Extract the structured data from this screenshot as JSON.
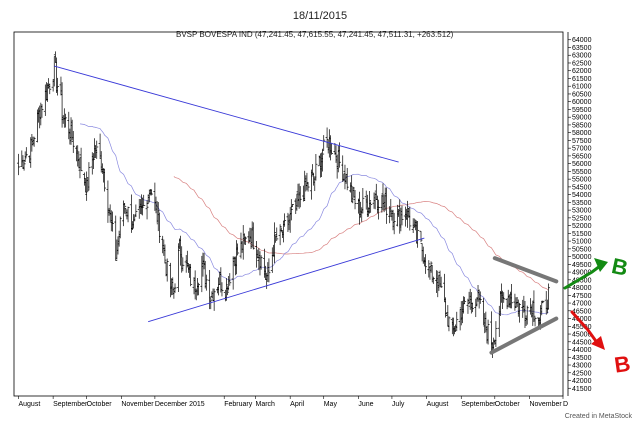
{
  "header": {
    "date": "18/11/2015",
    "title": "BVSP BOVESPA IND (47,241.45, 47,615.55, 47,241.45, 47,511.31, +263.512)"
  },
  "footer": {
    "credit": "Created in MetaStock"
  },
  "colors": {
    "bars": "#000000",
    "trendline": "#3a3ad8",
    "ma_fast": "#8a8ae0",
    "ma_slow": "#d88080",
    "channel": "#777777",
    "arrow_up": "#138a13",
    "arrow_down": "#e01010"
  },
  "chart_data": {
    "type": "ohlc",
    "title": "BVSP BOVESPA IND (47,241.45, 47,615.55, 47,241.45, 47,511.31, +263.512)",
    "ylim": [
      41000,
      64500
    ],
    "y_ticks": [
      41500,
      42000,
      42500,
      43000,
      43500,
      44000,
      44500,
      45000,
      45500,
      46000,
      46500,
      47000,
      47500,
      48000,
      48500,
      49000,
      49500,
      50000,
      50500,
      51000,
      51500,
      52000,
      52500,
      53000,
      53500,
      54000,
      54500,
      55000,
      55500,
      56000,
      56500,
      57000,
      57500,
      58000,
      58500,
      59000,
      59500,
      60000,
      60500,
      61000,
      61500,
      62000,
      62500,
      63000,
      63500,
      64000
    ],
    "x_labels": [
      "August",
      "September",
      "October",
      "November",
      "December 2015",
      "February",
      "March",
      "April",
      "May",
      "June",
      "July",
      "August",
      "September",
      "October",
      "November",
      "D"
    ],
    "close_anchors": [
      [
        "2014-08-01",
        55800
      ],
      [
        "2014-08-12",
        57000
      ],
      [
        "2014-08-20",
        59500
      ],
      [
        "2014-08-28",
        61000
      ],
      [
        "2014-09-02",
        62300
      ],
      [
        "2014-09-10",
        59000
      ],
      [
        "2014-09-17",
        58000
      ],
      [
        "2014-09-25",
        56000
      ],
      [
        "2014-10-01",
        54500
      ],
      [
        "2014-10-08",
        57000
      ],
      [
        "2014-10-15",
        56000
      ],
      [
        "2014-10-22",
        52500
      ],
      [
        "2014-10-27",
        50000
      ],
      [
        "2014-11-03",
        53500
      ],
      [
        "2014-11-12",
        52000
      ],
      [
        "2014-11-20",
        53000
      ],
      [
        "2014-11-27",
        54500
      ],
      [
        "2014-12-05",
        52000
      ],
      [
        "2014-12-12",
        49000
      ],
      [
        "2014-12-17",
        47500
      ],
      [
        "2014-12-23",
        50500
      ],
      [
        "2015-01-05",
        48000
      ],
      [
        "2015-01-12",
        49500
      ],
      [
        "2015-01-20",
        47500
      ],
      [
        "2015-01-27",
        48500
      ],
      [
        "2015-02-03",
        48000
      ],
      [
        "2015-02-10",
        50000
      ],
      [
        "2015-02-18",
        50800
      ],
      [
        "2015-02-25",
        51500
      ],
      [
        "2015-03-05",
        50000
      ],
      [
        "2015-03-12",
        48500
      ],
      [
        "2015-03-18",
        51000
      ],
      [
        "2015-03-25",
        51500
      ],
      [
        "2015-04-01",
        52500
      ],
      [
        "2015-04-08",
        53500
      ],
      [
        "2015-04-15",
        54500
      ],
      [
        "2015-04-22",
        55000
      ],
      [
        "2015-04-29",
        56500
      ],
      [
        "2015-05-05",
        57500
      ],
      [
        "2015-05-12",
        56500
      ],
      [
        "2015-05-19",
        55500
      ],
      [
        "2015-05-26",
        54000
      ],
      [
        "2015-06-02",
        53000
      ],
      [
        "2015-06-09",
        53500
      ],
      [
        "2015-06-16",
        54000
      ],
      [
        "2015-06-23",
        53500
      ],
      [
        "2015-06-30",
        53000
      ],
      [
        "2015-07-07",
        52500
      ],
      [
        "2015-07-14",
        53000
      ],
      [
        "2015-07-21",
        51500
      ],
      [
        "2015-07-28",
        50500
      ],
      [
        "2015-08-04",
        49000
      ],
      [
        "2015-08-11",
        48500
      ],
      [
        "2015-08-18",
        46500
      ],
      [
        "2015-08-24",
        45000
      ],
      [
        "2015-08-31",
        46500
      ],
      [
        "2015-09-08",
        47000
      ],
      [
        "2015-09-15",
        47500
      ],
      [
        "2015-09-22",
        45500
      ],
      [
        "2015-09-29",
        44500
      ],
      [
        "2015-10-06",
        47000
      ],
      [
        "2015-10-13",
        47500
      ],
      [
        "2015-10-20",
        47000
      ],
      [
        "2015-10-27",
        46500
      ],
      [
        "2015-11-03",
        47000
      ],
      [
        "2015-11-10",
        46000
      ],
      [
        "2015-11-18",
        47511
      ]
    ],
    "trendlines": [
      {
        "name": "resistance",
        "from": [
          "2014-09-02",
          62300
        ],
        "to": [
          "2015-07-07",
          56100
        ]
      },
      {
        "name": "support",
        "from": [
          "2014-11-25",
          45800
        ],
        "to": [
          "2015-07-30",
          51200
        ]
      }
    ],
    "channel": [
      {
        "from": [
          "2015-10-01",
          49900
        ],
        "to": [
          "2015-11-25",
          48400
        ]
      },
      {
        "from": [
          "2015-09-28",
          43800
        ],
        "to": [
          "2015-11-25",
          46000
        ]
      }
    ],
    "annotations": [
      {
        "text": "B",
        "color": "#138a13"
      },
      {
        "text": "B",
        "color": "#e01010"
      }
    ]
  }
}
